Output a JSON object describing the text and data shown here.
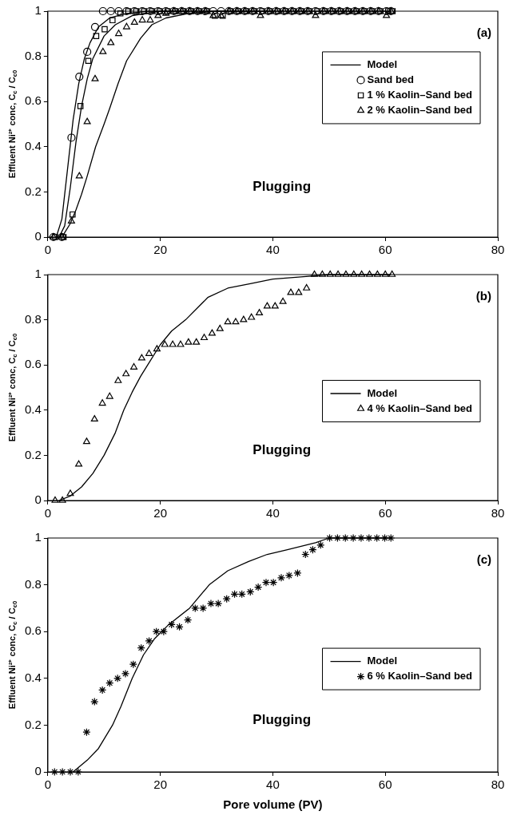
{
  "chart_data": [
    {
      "type": "scatter",
      "title": "(a)",
      "ylabel": "Effluent Ni²⁺ conc, C$_{c}$ / C$_{c0}$",
      "annotations": [
        "Plugging"
      ],
      "xlim": [
        0,
        80
      ],
      "xticks": [
        0,
        20,
        40,
        60,
        80
      ],
      "ylim": [
        0,
        1
      ],
      "yticks": [
        0,
        0.2,
        0.4,
        0.6,
        0.8,
        1
      ],
      "legend": "top right",
      "x": [
        1,
        2.5,
        4.2,
        5.6,
        7,
        8.4,
        9.8,
        11.2,
        12.6,
        14,
        15.4,
        16.8,
        18.2,
        19.6,
        21,
        22.4,
        23.8,
        25.2,
        26.6,
        28,
        29.4,
        30.8,
        32.2,
        33.6,
        35,
        36.4,
        37.8,
        39.2,
        40.6,
        42,
        43.4,
        44.8,
        46.2,
        47.6,
        49,
        50.4,
        51.8,
        53.2,
        54.6,
        56,
        57.4,
        58.8,
        60.2,
        61
      ],
      "series": [
        {
          "name": "Model",
          "type": "line",
          "marker": "none",
          "color": "#000000",
          "x": [
            1.5,
            2.5,
            3.5,
            4.5,
            5.5,
            6.5,
            7.5,
            9,
            11,
            14,
            18,
            25
          ],
          "values": [
            0,
            0.08,
            0.3,
            0.52,
            0.68,
            0.79,
            0.86,
            0.93,
            0.97,
            0.99,
            1,
            1
          ]
        },
        {
          "type": "line",
          "marker": "none",
          "color": "#000000",
          "x": [
            2,
            3,
            4,
            5,
            6,
            7,
            8,
            10,
            12,
            15,
            20,
            40
          ],
          "values": [
            0,
            0.05,
            0.22,
            0.42,
            0.58,
            0.7,
            0.79,
            0.89,
            0.94,
            0.98,
            1,
            1
          ]
        },
        {
          "type": "line",
          "marker": "none",
          "color": "#000000",
          "x": [
            2.6,
            3,
            4,
            5,
            6,
            7,
            8.5,
            10,
            11,
            12.5,
            14,
            16.5,
            18.5,
            21,
            25,
            30,
            61
          ],
          "values": [
            0,
            0.02,
            0.06,
            0.12,
            0.19,
            0.27,
            0.4,
            0.5,
            0.57,
            0.68,
            0.78,
            0.88,
            0.94,
            0.97,
            0.99,
            1,
            1
          ]
        },
        {
          "name": "Sand bed",
          "marker": "circle",
          "color": "#000000",
          "values": [
            0,
            0,
            0.44,
            0.71,
            0.82,
            0.93,
            1,
            1,
            1,
            1,
            1,
            1,
            1,
            1,
            1,
            1,
            1,
            1,
            1,
            1,
            1,
            1,
            1,
            1,
            1,
            1,
            1,
            1,
            1,
            1,
            1,
            1,
            1,
            1,
            1,
            1,
            1,
            1,
            1,
            1,
            1,
            1,
            1,
            1
          ]
        },
        {
          "name": "1 % Kaolin–Sand bed",
          "marker": "square",
          "color": "#000000",
          "x": [
            1.3,
            2.8,
            4.4,
            5.8,
            7.2,
            8.6,
            10.1,
            11.5,
            12.9,
            14.3,
            15.7,
            17.1,
            18.5,
            19.9,
            21.3,
            22.7,
            24.1,
            25.5,
            26.9,
            28.3,
            29.7,
            31.1,
            32.5,
            33.9,
            35.3,
            36.7,
            38.1,
            39.5,
            40.9,
            42.3,
            43.7,
            45.1,
            46.5,
            47.9,
            49.3,
            50.7,
            52.1,
            53.5,
            54.9,
            56.3,
            57.7,
            59.1,
            60.5,
            61.3
          ],
          "values": [
            0,
            0,
            0.1,
            0.58,
            0.78,
            0.89,
            0.92,
            0.96,
            0.99,
            1,
            1,
            1,
            1,
            1,
            1,
            1,
            1,
            1,
            1,
            1,
            0.98,
            0.98,
            1,
            1,
            1,
            1,
            1,
            1,
            1,
            1,
            1,
            1,
            1,
            1,
            1,
            1,
            1,
            1,
            1,
            1,
            1,
            1,
            1,
            1
          ]
        },
        {
          "name": "2 % Kaolin–Sand bed",
          "marker": "triangle",
          "color": "#000000",
          "values": [
            0,
            0,
            0.07,
            0.27,
            0.51,
            0.7,
            0.82,
            0.86,
            0.9,
            0.93,
            0.95,
            0.96,
            0.96,
            0.98,
            0.99,
            1,
            1,
            1,
            1,
            1,
            0.98,
            0.98,
            1,
            1,
            1,
            1,
            0.98,
            1,
            1,
            1,
            1,
            1,
            1,
            0.98,
            1,
            1,
            1,
            1,
            1,
            1,
            1,
            1,
            0.98,
            1
          ]
        }
      ]
    },
    {
      "type": "scatter",
      "title": "(b)",
      "ylabel": "Effluent Ni²⁺ conc, C$_{c}$ / C$_{c0}$",
      "annotations": [
        "Plugging"
      ],
      "xlim": [
        0,
        80
      ],
      "xticks": [
        0,
        20,
        40,
        60,
        80
      ],
      "ylim": [
        0,
        1
      ],
      "yticks": [
        0,
        0.2,
        0.4,
        0.6,
        0.8,
        1
      ],
      "legend": "right",
      "series": [
        {
          "name": "Model",
          "type": "line",
          "marker": "none",
          "color": "#000000",
          "x": [
            2,
            4,
            6,
            8,
            10,
            12,
            13.5,
            15,
            16.5,
            18,
            20,
            22,
            24.5,
            28.5,
            32,
            36,
            40,
            45,
            50,
            61
          ],
          "values": [
            0,
            0.02,
            0.06,
            0.12,
            0.2,
            0.3,
            0.4,
            0.48,
            0.55,
            0.61,
            0.69,
            0.75,
            0.8,
            0.9,
            0.94,
            0.96,
            0.98,
            0.99,
            1,
            1
          ]
        },
        {
          "name": "4 % Kaolin–Sand bed",
          "marker": "triangle",
          "color": "#000000",
          "x": [
            1.3,
            2.6,
            4,
            5.5,
            6.9,
            8.3,
            9.7,
            11,
            12.5,
            13.9,
            15.3,
            16.7,
            18,
            19.4,
            20.8,
            22.2,
            23.6,
            25,
            26.4,
            27.8,
            29.2,
            30.6,
            32,
            33.4,
            34.8,
            36.2,
            37.6,
            39,
            40.4,
            41.8,
            43.2,
            44.6,
            46,
            47.4,
            48.8,
            50.2,
            51.6,
            53,
            54.4,
            55.8,
            57.2,
            58.6,
            60,
            61.2
          ],
          "values": [
            0,
            0,
            0.03,
            0.16,
            0.26,
            0.36,
            0.43,
            0.46,
            0.53,
            0.56,
            0.59,
            0.63,
            0.65,
            0.67,
            0.69,
            0.69,
            0.69,
            0.7,
            0.7,
            0.72,
            0.74,
            0.76,
            0.79,
            0.79,
            0.8,
            0.81,
            0.83,
            0.86,
            0.86,
            0.88,
            0.92,
            0.92,
            0.94,
            1,
            1,
            1,
            1,
            1,
            1,
            1,
            1,
            1,
            1,
            1
          ]
        }
      ]
    },
    {
      "type": "scatter",
      "title": "(c)",
      "xlabel": "Pore volume (PV)",
      "ylabel": "Effluent Ni²⁺ conc, C$_{c}$ / C$_{c0}$",
      "annotations": [
        "Plugging"
      ],
      "xlim": [
        0,
        80
      ],
      "xticks": [
        0,
        20,
        40,
        60,
        80
      ],
      "ylim": [
        0,
        1
      ],
      "yticks": [
        0,
        0.2,
        0.4,
        0.6,
        0.8,
        1
      ],
      "legend": "right",
      "series": [
        {
          "name": "Model",
          "type": "line",
          "marker": "none",
          "color": "#000000",
          "x": [
            4.5,
            7,
            9,
            11.5,
            13,
            15,
            17,
            19,
            21.5,
            25.2,
            28.7,
            32,
            35.7,
            39,
            42.6,
            47.6,
            50,
            61
          ],
          "values": [
            0,
            0.05,
            0.1,
            0.2,
            0.28,
            0.4,
            0.5,
            0.57,
            0.63,
            0.7,
            0.8,
            0.86,
            0.9,
            0.93,
            0.95,
            0.98,
            1,
            1
          ]
        },
        {
          "name": "6 % Kaolin–Sand bed",
          "marker": "cross",
          "color": "#000000",
          "x": [
            1.2,
            2.6,
            4,
            5.4,
            6.9,
            8.3,
            9.7,
            11,
            12.4,
            13.8,
            15.2,
            16.6,
            18,
            19.3,
            20.6,
            22,
            23.4,
            24.9,
            26.2,
            27.6,
            29,
            30.3,
            31.8,
            33.2,
            34.5,
            36,
            37.4,
            38.8,
            40.1,
            41.5,
            42.9,
            44.4,
            45.8,
            47.1,
            48.5,
            50.1,
            51.5,
            52.9,
            54.3,
            55.7,
            57.1,
            58.5,
            59.9,
            61
          ],
          "values": [
            0,
            0,
            0,
            0,
            0.17,
            0.3,
            0.35,
            0.38,
            0.4,
            0.42,
            0.46,
            0.53,
            0.56,
            0.6,
            0.6,
            0.63,
            0.62,
            0.65,
            0.7,
            0.7,
            0.72,
            0.72,
            0.74,
            0.76,
            0.76,
            0.77,
            0.79,
            0.81,
            0.81,
            0.83,
            0.84,
            0.85,
            0.93,
            0.95,
            0.97,
            1,
            1,
            1,
            1,
            1,
            1,
            1,
            1,
            1
          ]
        }
      ]
    }
  ]
}
